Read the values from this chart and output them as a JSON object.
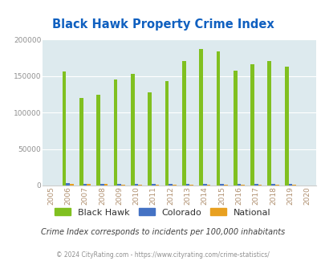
{
  "title": "Black Hawk Property Crime Index",
  "years": [
    2005,
    2006,
    2007,
    2008,
    2009,
    2010,
    2011,
    2012,
    2013,
    2014,
    2015,
    2016,
    2017,
    2018,
    2019,
    2020
  ],
  "black_hawk": [
    0,
    156000,
    120000,
    125000,
    145000,
    153000,
    128000,
    143000,
    171000,
    187000,
    184000,
    158000,
    166000,
    171000,
    163000,
    0
  ],
  "colorado": [
    0,
    3500,
    2500,
    2500,
    2000,
    2500,
    2000,
    2000,
    2000,
    2500,
    2500,
    2000,
    2000,
    2500,
    2500,
    0
  ],
  "national": [
    0,
    2200,
    1800,
    1800,
    1600,
    1500,
    1400,
    1400,
    1500,
    1500,
    1500,
    1500,
    1500,
    1500,
    1600,
    0
  ],
  "bar_width": 0.22,
  "ylim": [
    0,
    200000
  ],
  "yticks": [
    0,
    50000,
    100000,
    150000,
    200000
  ],
  "black_hawk_color": "#80c020",
  "colorado_color": "#4472c4",
  "national_color": "#e8a020",
  "bg_color": "#ddeaee",
  "legend_labels": [
    "Black Hawk",
    "Colorado",
    "National"
  ],
  "footnote1": "Crime Index corresponds to incidents per 100,000 inhabitants",
  "footnote2": "© 2024 CityRating.com - https://www.cityrating.com/crime-statistics/",
  "title_color": "#1060c0",
  "footnote1_color": "#404040",
  "footnote2_color": "#909090",
  "axis_label_color": "#b09070",
  "ytick_label_color": "#909090"
}
